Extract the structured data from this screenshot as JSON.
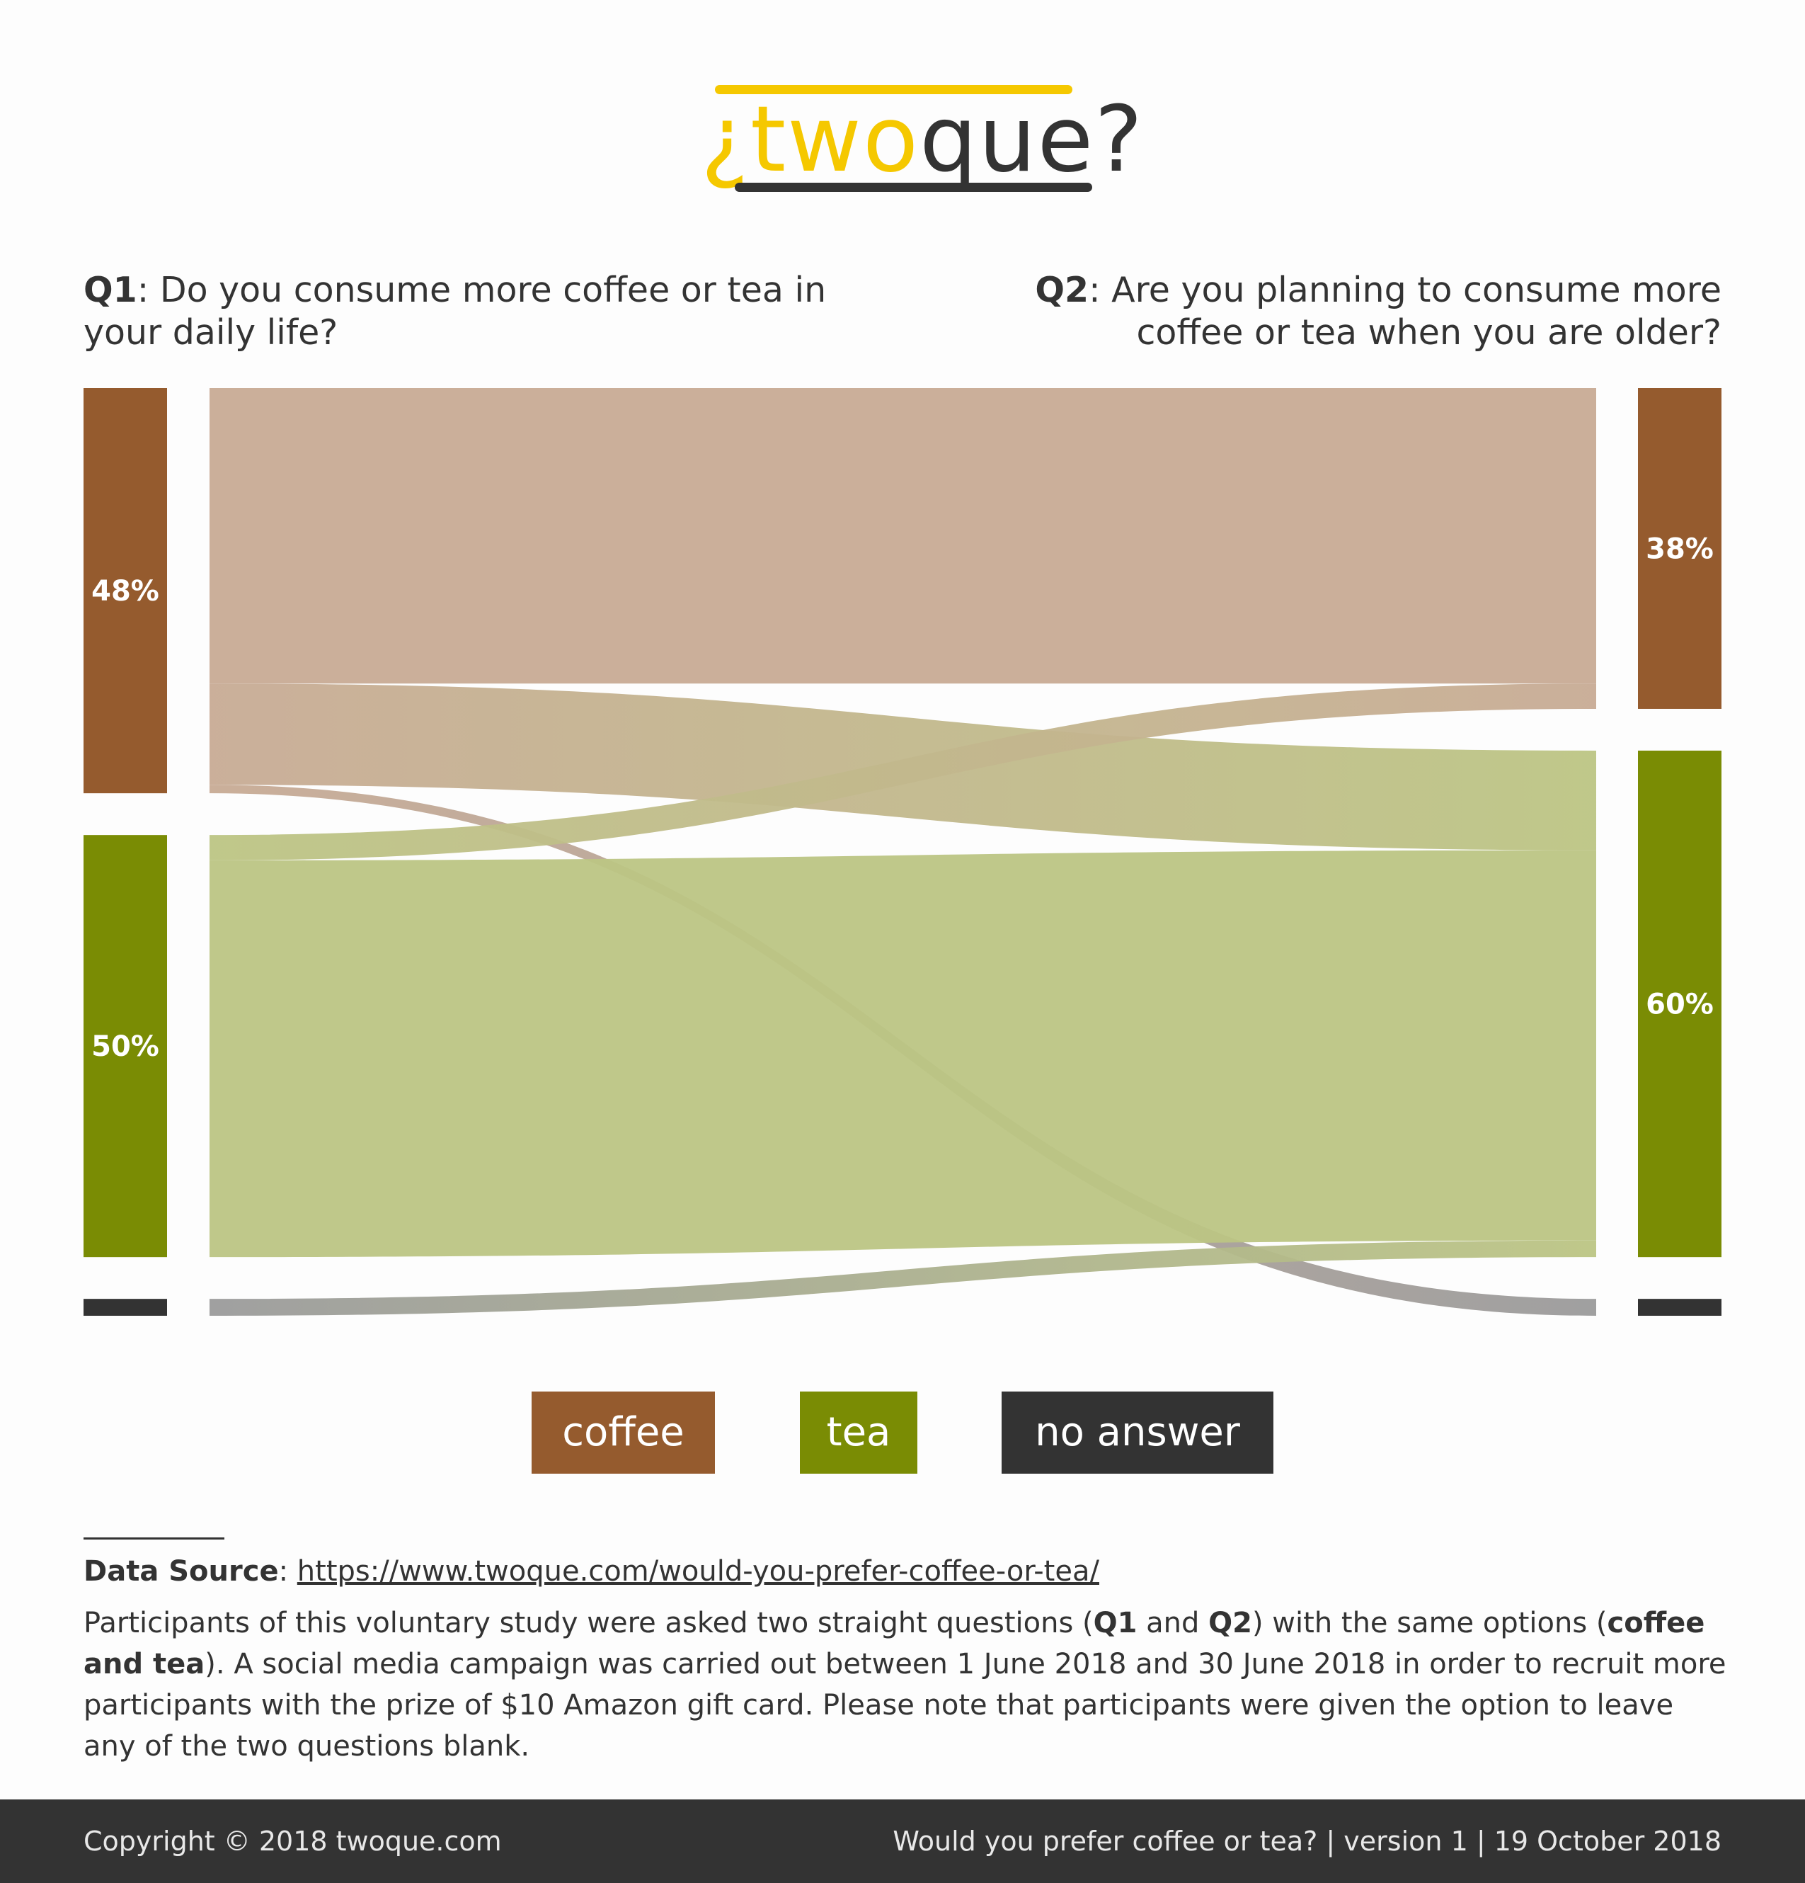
{
  "logo": {
    "prefix": "¿",
    "two": "two",
    "que": "que",
    "suffix": "?"
  },
  "questions": {
    "q1_label": "Q1",
    "q1_text": ": Do you consume more coffee or tea in your daily life?",
    "q2_label": "Q2",
    "q2_text": ": Are you planning to consume more coffee or tea when you are older?"
  },
  "chart_data": {
    "type": "sankey",
    "colors": {
      "coffee": "#955b2e",
      "tea": "#7a8c04",
      "no_answer": "#333333",
      "coffee_flow": "#c8ab95",
      "tea_flow": "#bcc584",
      "na_flow": "#9b9b9b"
    },
    "left_nodes": [
      {
        "key": "coffee",
        "label": "48%",
        "value": 48
      },
      {
        "key": "tea",
        "label": "50%",
        "value": 50
      },
      {
        "key": "no_answer",
        "label": "",
        "value": 2
      }
    ],
    "right_nodes": [
      {
        "key": "coffee",
        "label": "38%",
        "value": 38
      },
      {
        "key": "tea",
        "label": "60%",
        "value": 60
      },
      {
        "key": "no_answer",
        "label": "",
        "value": 2
      }
    ],
    "flows": [
      {
        "from": "coffee",
        "to": "coffee",
        "value": 35
      },
      {
        "from": "coffee",
        "to": "tea",
        "value": 12
      },
      {
        "from": "coffee",
        "to": "no_answer",
        "value": 1
      },
      {
        "from": "tea",
        "to": "coffee",
        "value": 3
      },
      {
        "from": "tea",
        "to": "tea",
        "value": 47
      },
      {
        "from": "no_answer",
        "to": "tea",
        "value": 2
      }
    ]
  },
  "legend": [
    {
      "key": "coffee",
      "label": "coffee"
    },
    {
      "key": "tea",
      "label": "tea"
    },
    {
      "key": "no_answer",
      "label": "no answer"
    }
  ],
  "notes": {
    "source_label": "Data Source",
    "source_url": "https://www.twoque.com/would-you-prefer-coffee-or-tea/",
    "p_part1": "Participants of this voluntary study were asked two straight questions (",
    "p_q1": "Q1",
    "p_and": " and ",
    "p_q2": "Q2",
    "p_part2": ") with the same options (",
    "p_options": "coffee and tea",
    "p_part3": "). A social media campaign was carried out between 1 June 2018 and 30 June 2018 in order to recruit more participants with the prize of $10 Amazon gift card. Please note that participants were given the option to leave any of the two questions blank."
  },
  "footer": {
    "left": "Copyright © 2018 twoque.com",
    "right": "Would you prefer coffee or tea?  |  version 1  |  19 October 2018"
  }
}
